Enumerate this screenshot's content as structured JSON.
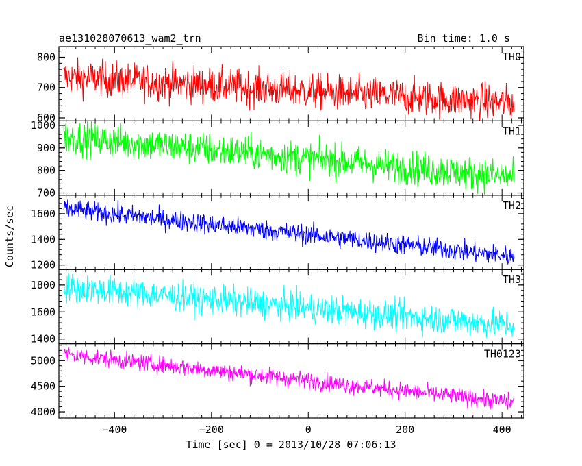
{
  "header": {
    "title": "ae131028070613_wam2_trn",
    "bin_time": "Bin time: 1.0 s"
  },
  "chart_data": {
    "type": "line",
    "layout": "stacked panels sharing x axis",
    "xlabel": "Time [sec] 0 = 2013/10/28 07:06:13",
    "ylabel": "Counts/sec",
    "xlim": [
      -515,
      445
    ],
    "x_ticks": [
      -400,
      -200,
      0,
      200,
      400
    ],
    "x_start": -505,
    "x_end": 425,
    "bin_seconds": 1.0,
    "grid": false,
    "panels": [
      {
        "name": "TH0",
        "color": "#ff0000",
        "ylim": [
          590,
          835
        ],
        "y_ticks": [
          600,
          700,
          800
        ],
        "trend_start": 735,
        "trend_end": 648,
        "noise_sd": 30
      },
      {
        "name": "TH1",
        "color": "#00ff00",
        "ylim": [
          690,
          1020
        ],
        "y_ticks": [
          700,
          800,
          900,
          1000
        ],
        "trend_start": 950,
        "trend_end": 770,
        "noise_sd": 38
      },
      {
        "name": "TH2",
        "color": "#0000ff",
        "ylim": [
          1165,
          1745
        ],
        "y_ticks": [
          1200,
          1400,
          1600
        ],
        "trend_start": 1640,
        "trend_end": 1265,
        "noise_sd": 40
      },
      {
        "name": "TH3",
        "color": "#00ffff",
        "ylim": [
          1365,
          1915
        ],
        "y_ticks": [
          1400,
          1600,
          1800
        ],
        "trend_start": 1785,
        "trend_end": 1500,
        "noise_sd": 55
      },
      {
        "name": "TH0123",
        "color": "#ff00ff",
        "ylim": [
          3880,
          5330
        ],
        "y_ticks": [
          4000,
          4500,
          5000
        ],
        "trend_start": 5120,
        "trend_end": 4180,
        "noise_sd": 85
      }
    ]
  }
}
